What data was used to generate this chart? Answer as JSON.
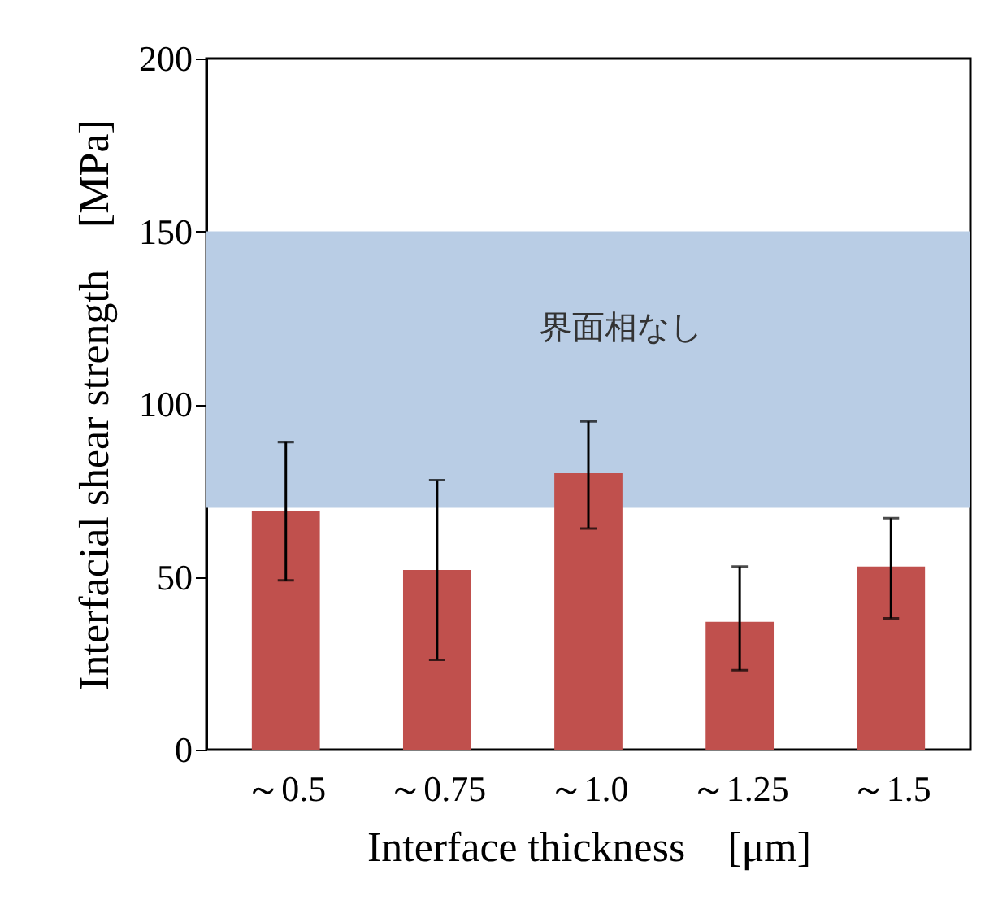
{
  "chart_data": {
    "type": "bar",
    "xlabel": "Interface thickness　[μm]",
    "ylabel": "Interfacial  shear strength　[MPa]",
    "categories": [
      "～0.5",
      "～0.75",
      "～1.0",
      "～1.25",
      "～1.5"
    ],
    "values": [
      69,
      52,
      80,
      37,
      53
    ],
    "errors": [
      [
        49,
        89
      ],
      [
        26,
        78
      ],
      [
        64,
        95
      ],
      [
        23,
        53
      ],
      [
        38,
        67
      ]
    ],
    "color": "#c0504d",
    "ylim": [
      0,
      200
    ],
    "yticks": [
      0,
      50,
      100,
      150,
      200
    ],
    "bands": [
      {
        "axis": "y",
        "from": 70,
        "to": 150,
        "label": "界面相なし",
        "color": "#b9cde5"
      }
    ],
    "grid": false
  }
}
